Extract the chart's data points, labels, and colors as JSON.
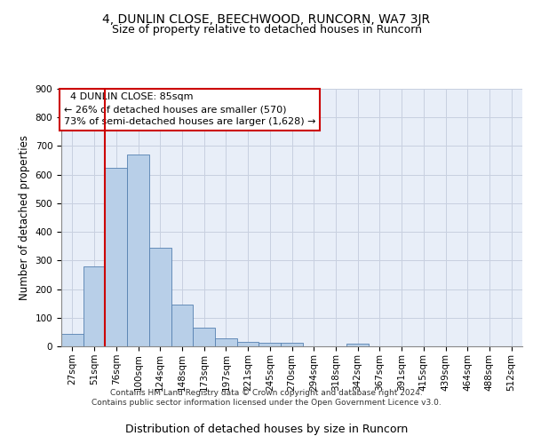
{
  "title": "4, DUNLIN CLOSE, BEECHWOOD, RUNCORN, WA7 3JR",
  "subtitle": "Size of property relative to detached houses in Runcorn",
  "xlabel": "Distribution of detached houses by size in Runcorn",
  "ylabel": "Number of detached properties",
  "bar_values": [
    42,
    280,
    625,
    670,
    345,
    145,
    65,
    28,
    15,
    12,
    12,
    0,
    0,
    10,
    0,
    0,
    0,
    0,
    0,
    0,
    0
  ],
  "bar_labels": [
    "27sqm",
    "51sqm",
    "76sqm",
    "100sqm",
    "124sqm",
    "148sqm",
    "173sqm",
    "197sqm",
    "221sqm",
    "245sqm",
    "270sqm",
    "294sqm",
    "318sqm",
    "342sqm",
    "367sqm",
    "391sqm",
    "415sqm",
    "439sqm",
    "464sqm",
    "488sqm",
    "512sqm"
  ],
  "bar_color": "#b8cfe8",
  "bar_edge_color": "#5580b0",
  "red_line_color": "#cc0000",
  "red_line_x": 1.5,
  "annotation_text": "  4 DUNLIN CLOSE: 85sqm\n← 26% of detached houses are smaller (570)\n73% of semi-detached houses are larger (1,628) →",
  "annotation_box_color": "#cc0000",
  "ylim": [
    0,
    900
  ],
  "yticks": [
    0,
    100,
    200,
    300,
    400,
    500,
    600,
    700,
    800,
    900
  ],
  "background_color": "#e8eef8",
  "grid_color": "#c8d0e0",
  "footer": "Contains HM Land Registry data © Crown copyright and database right 2024.\nContains public sector information licensed under the Open Government Licence v3.0.",
  "title_fontsize": 10,
  "subtitle_fontsize": 9,
  "xlabel_fontsize": 9,
  "ylabel_fontsize": 8.5,
  "tick_fontsize": 7.5,
  "footer_fontsize": 6.5,
  "annotation_fontsize": 8
}
